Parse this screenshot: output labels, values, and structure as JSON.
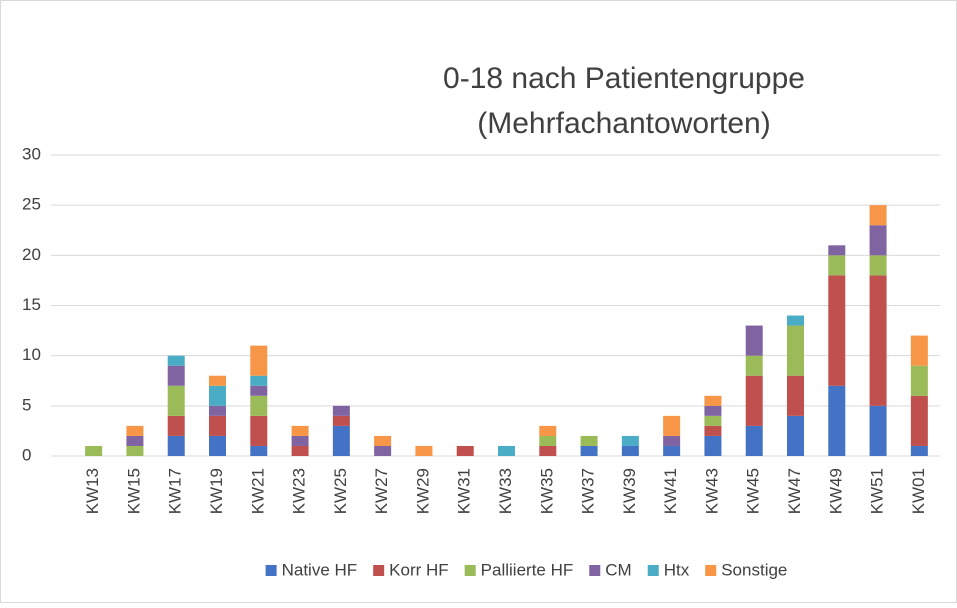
{
  "chart_data": {
    "type": "stacked_bar",
    "title": [
      "0-18 nach Patientengruppe",
      "(Mehrfachantoworten)"
    ],
    "categories": [
      "KW13",
      "KW15",
      "KW17",
      "KW19",
      "KW21",
      "KW23",
      "KW25",
      "KW27",
      "KW29",
      "KW31",
      "KW33",
      "KW35",
      "KW37",
      "KW39",
      "KW41",
      "KW43",
      "KW45",
      "KW47",
      "KW49",
      "KW51",
      "KW01"
    ],
    "series": [
      {
        "name": "Native HF",
        "color": "#4472c4",
        "values": [
          0,
          0,
          2,
          2,
          1,
          0,
          3,
          0,
          0,
          0,
          0,
          0,
          1,
          1,
          1,
          2,
          3,
          4,
          7,
          5,
          1
        ]
      },
      {
        "name": "Korr HF",
        "color": "#c0504d",
        "values": [
          0,
          0,
          2,
          2,
          3,
          1,
          1,
          0,
          0,
          1,
          0,
          1,
          0,
          0,
          0,
          1,
          5,
          4,
          11,
          13,
          5
        ]
      },
      {
        "name": "Palliierte HF",
        "color": "#9bbb59",
        "values": [
          1,
          1,
          3,
          0,
          2,
          0,
          0,
          0,
          0,
          0,
          0,
          1,
          1,
          0,
          0,
          1,
          2,
          5,
          2,
          2,
          3
        ]
      },
      {
        "name": "CM",
        "color": "#8064a2",
        "values": [
          0,
          1,
          2,
          1,
          1,
          1,
          1,
          1,
          0,
          0,
          0,
          0,
          0,
          0,
          1,
          1,
          3,
          0,
          1,
          3,
          0
        ]
      },
      {
        "name": "Htx",
        "color": "#4bacc6",
        "values": [
          0,
          0,
          1,
          2,
          1,
          0,
          0,
          0,
          0,
          0,
          1,
          0,
          0,
          1,
          0,
          0,
          0,
          1,
          0,
          0,
          0
        ]
      },
      {
        "name": "Sonstige",
        "color": "#f79646",
        "values": [
          0,
          1,
          0,
          1,
          3,
          1,
          0,
          1,
          1,
          0,
          0,
          1,
          0,
          0,
          2,
          1,
          0,
          0,
          0,
          2,
          3
        ]
      }
    ],
    "ylim": [
      0,
      30
    ],
    "yticks": [
      0,
      5,
      10,
      15,
      20,
      25,
      30
    ],
    "grid": true,
    "legend": "bottom"
  }
}
